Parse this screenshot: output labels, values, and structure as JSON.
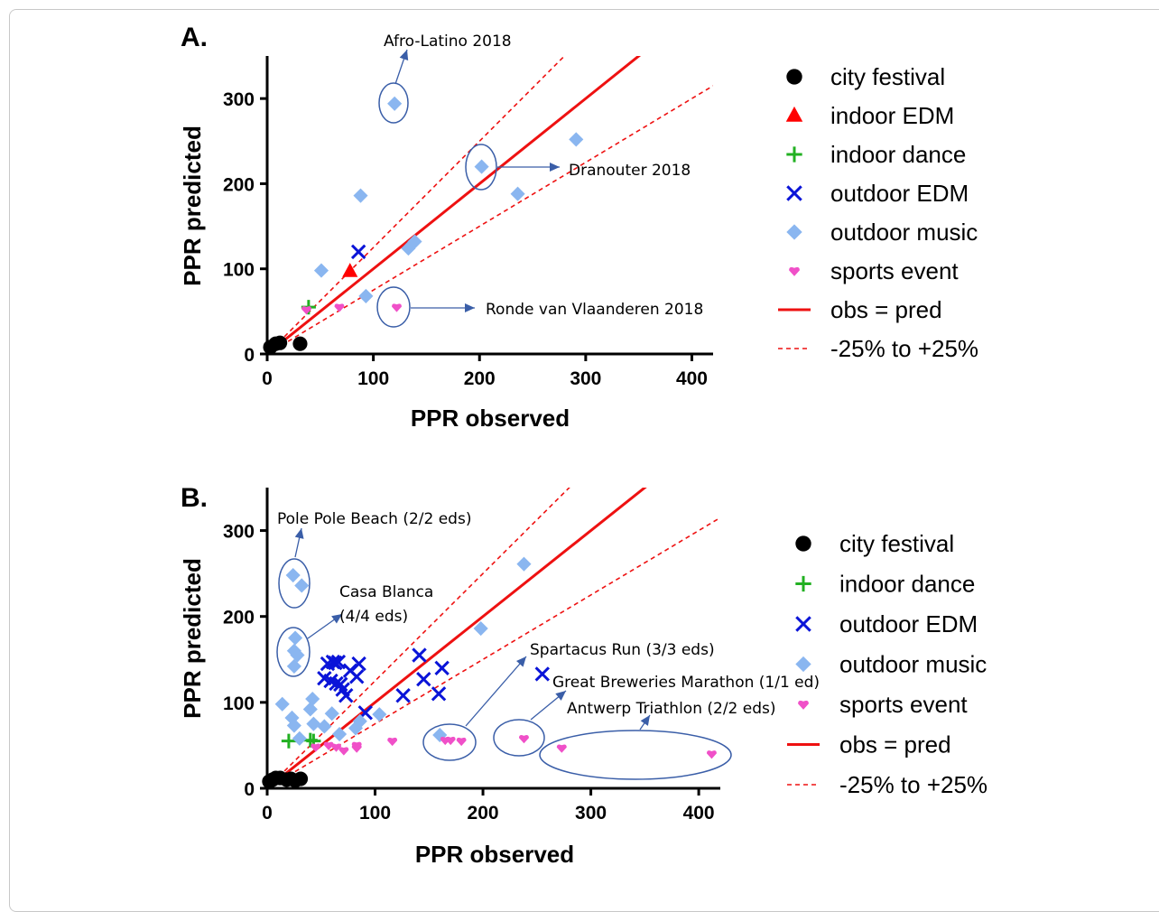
{
  "colors": {
    "city festival": "#000000",
    "indoor EDM": "#ff0000",
    "indoor dance": "#22b022",
    "outdoor EDM": "#0a14d8",
    "outdoor music": "#8ab6f0",
    "sports event": "#f050c8",
    "obs_line": "#ee1111",
    "annotation": "#3a5ea8"
  },
  "chart_data": [
    {
      "panel": "A.",
      "type": "scatter",
      "xlabel": "PPR observed",
      "ylabel": "PPR predicted",
      "xlim": [
        0,
        420
      ],
      "ylim": [
        0,
        350
      ],
      "xticks": [
        0,
        100,
        200,
        300,
        400
      ],
      "yticks": [
        0,
        100,
        200,
        300
      ],
      "series": [
        {
          "name": "city festival",
          "marker": "circle",
          "points": [
            [
              3,
              8
            ],
            [
              8,
              12
            ],
            [
              12,
              13
            ],
            [
              31,
              12
            ]
          ]
        },
        {
          "name": "indoor EDM",
          "marker": "triangle",
          "points": [
            [
              78,
              97
            ]
          ]
        },
        {
          "name": "indoor dance",
          "marker": "plus",
          "points": [
            [
              39,
              55
            ]
          ]
        },
        {
          "name": "outdoor EDM",
          "marker": "x",
          "points": [
            [
              86,
              120
            ]
          ]
        },
        {
          "name": "outdoor music",
          "marker": "diamond",
          "points": [
            [
              120,
              294
            ],
            [
              88,
              186
            ],
            [
              51,
              98
            ],
            [
              93,
              68
            ],
            [
              133,
              124
            ],
            [
              139,
              132
            ],
            [
              202,
              220
            ],
            [
              236,
              188
            ],
            [
              291,
              252
            ]
          ]
        },
        {
          "name": "sports event",
          "marker": "heart",
          "points": [
            [
              37,
              52
            ],
            [
              68,
              55
            ],
            [
              122,
              55
            ]
          ]
        }
      ],
      "lines": [
        {
          "name": "obs = pred",
          "style": "solid",
          "slope": 1
        },
        {
          "name": "-25% to +25%",
          "style": "dashed",
          "slope": 0.75
        },
        {
          "name": "-25% to +25%",
          "style": "dashed",
          "slope": 1.25
        }
      ],
      "annotations": [
        {
          "text": "Afro-Latino 2018"
        },
        {
          "text": "Dranouter 2018"
        },
        {
          "text": "Ronde van Vlaanderen 2018"
        }
      ],
      "legend": {
        "position": "right",
        "items": [
          "city festival",
          "indoor EDM",
          "indoor dance",
          "outdoor EDM",
          "outdoor music",
          "sports event",
          "obs = pred",
          "-25% to +25%"
        ]
      }
    },
    {
      "panel": "B.",
      "type": "scatter",
      "xlabel": "PPR observed",
      "ylabel": "PPR predicted",
      "xlim": [
        0,
        420
      ],
      "ylim": [
        0,
        350
      ],
      "xticks": [
        0,
        100,
        200,
        300,
        400
      ],
      "yticks": [
        0,
        100,
        200,
        300
      ],
      "series": [
        {
          "name": "city festival",
          "marker": "circle",
          "points": [
            [
              2,
              8
            ],
            [
              5,
              10
            ],
            [
              8,
              12
            ],
            [
              12,
              12
            ],
            [
              18,
              10
            ],
            [
              22,
              11
            ],
            [
              26,
              9
            ],
            [
              31,
              11
            ]
          ]
        },
        {
          "name": "indoor dance",
          "marker": "plus",
          "points": [
            [
              20,
              55
            ],
            [
              40,
              56
            ],
            [
              43,
              55
            ]
          ]
        },
        {
          "name": "outdoor EDM",
          "marker": "x",
          "points": [
            [
              53,
              128
            ],
            [
              56,
              145
            ],
            [
              59,
              125
            ],
            [
              61,
              147
            ],
            [
              63,
              146
            ],
            [
              66,
              147
            ],
            [
              64,
              122
            ],
            [
              68,
              121
            ],
            [
              70,
              115
            ],
            [
              73,
              108
            ],
            [
              77,
              137
            ],
            [
              83,
              130
            ],
            [
              85,
              145
            ],
            [
              91,
              88
            ],
            [
              126,
              108
            ],
            [
              141,
              155
            ],
            [
              145,
              127
            ],
            [
              159,
              110
            ],
            [
              162,
              140
            ],
            [
              255,
              133
            ]
          ]
        },
        {
          "name": "outdoor music",
          "marker": "diamond",
          "points": [
            [
              24,
              248
            ],
            [
              32,
              236
            ],
            [
              26,
              175
            ],
            [
              25,
              160
            ],
            [
              28,
              155
            ],
            [
              25,
              142
            ],
            [
              14,
              98
            ],
            [
              23,
              82
            ],
            [
              25,
              73
            ],
            [
              30,
              58
            ],
            [
              40,
              92
            ],
            [
              42,
              104
            ],
            [
              43,
              75
            ],
            [
              53,
              72
            ],
            [
              60,
              87
            ],
            [
              67,
              63
            ],
            [
              82,
              70
            ],
            [
              86,
              78
            ],
            [
              104,
              86
            ],
            [
              160,
              62
            ],
            [
              198,
              186
            ],
            [
              238,
              261
            ]
          ]
        },
        {
          "name": "sports event",
          "marker": "heart",
          "points": [
            [
              45,
              48
            ],
            [
              57,
              50
            ],
            [
              64,
              48
            ],
            [
              71,
              44
            ],
            [
              83,
              50
            ],
            [
              83,
              47
            ],
            [
              116,
              55
            ],
            [
              165,
              56
            ],
            [
              170,
              56
            ],
            [
              180,
              55
            ],
            [
              238,
              58
            ],
            [
              273,
              47
            ],
            [
              412,
              40
            ]
          ]
        }
      ],
      "lines": [
        {
          "name": "obs = pred",
          "style": "solid",
          "slope": 1
        },
        {
          "name": "-25% to +25%",
          "style": "dashed",
          "slope": 0.75
        },
        {
          "name": "-25% to +25%",
          "style": "dashed",
          "slope": 1.25
        }
      ],
      "annotations": [
        {
          "text": "Pole Pole Beach (2/2 eds)"
        },
        {
          "text": "Casa Blanca"
        },
        {
          "text": "(4/4 eds)"
        },
        {
          "text": "Spartacus Run (3/3 eds)"
        },
        {
          "text": "Great Breweries Marathon (1/1 ed)"
        },
        {
          "text": "Antwerp Triathlon (2/2 eds)"
        }
      ],
      "legend": {
        "position": "right",
        "items": [
          "city festival",
          "indoor dance",
          "outdoor EDM",
          "outdoor music",
          "sports event",
          "obs = pred",
          "-25% to +25%"
        ]
      }
    }
  ]
}
